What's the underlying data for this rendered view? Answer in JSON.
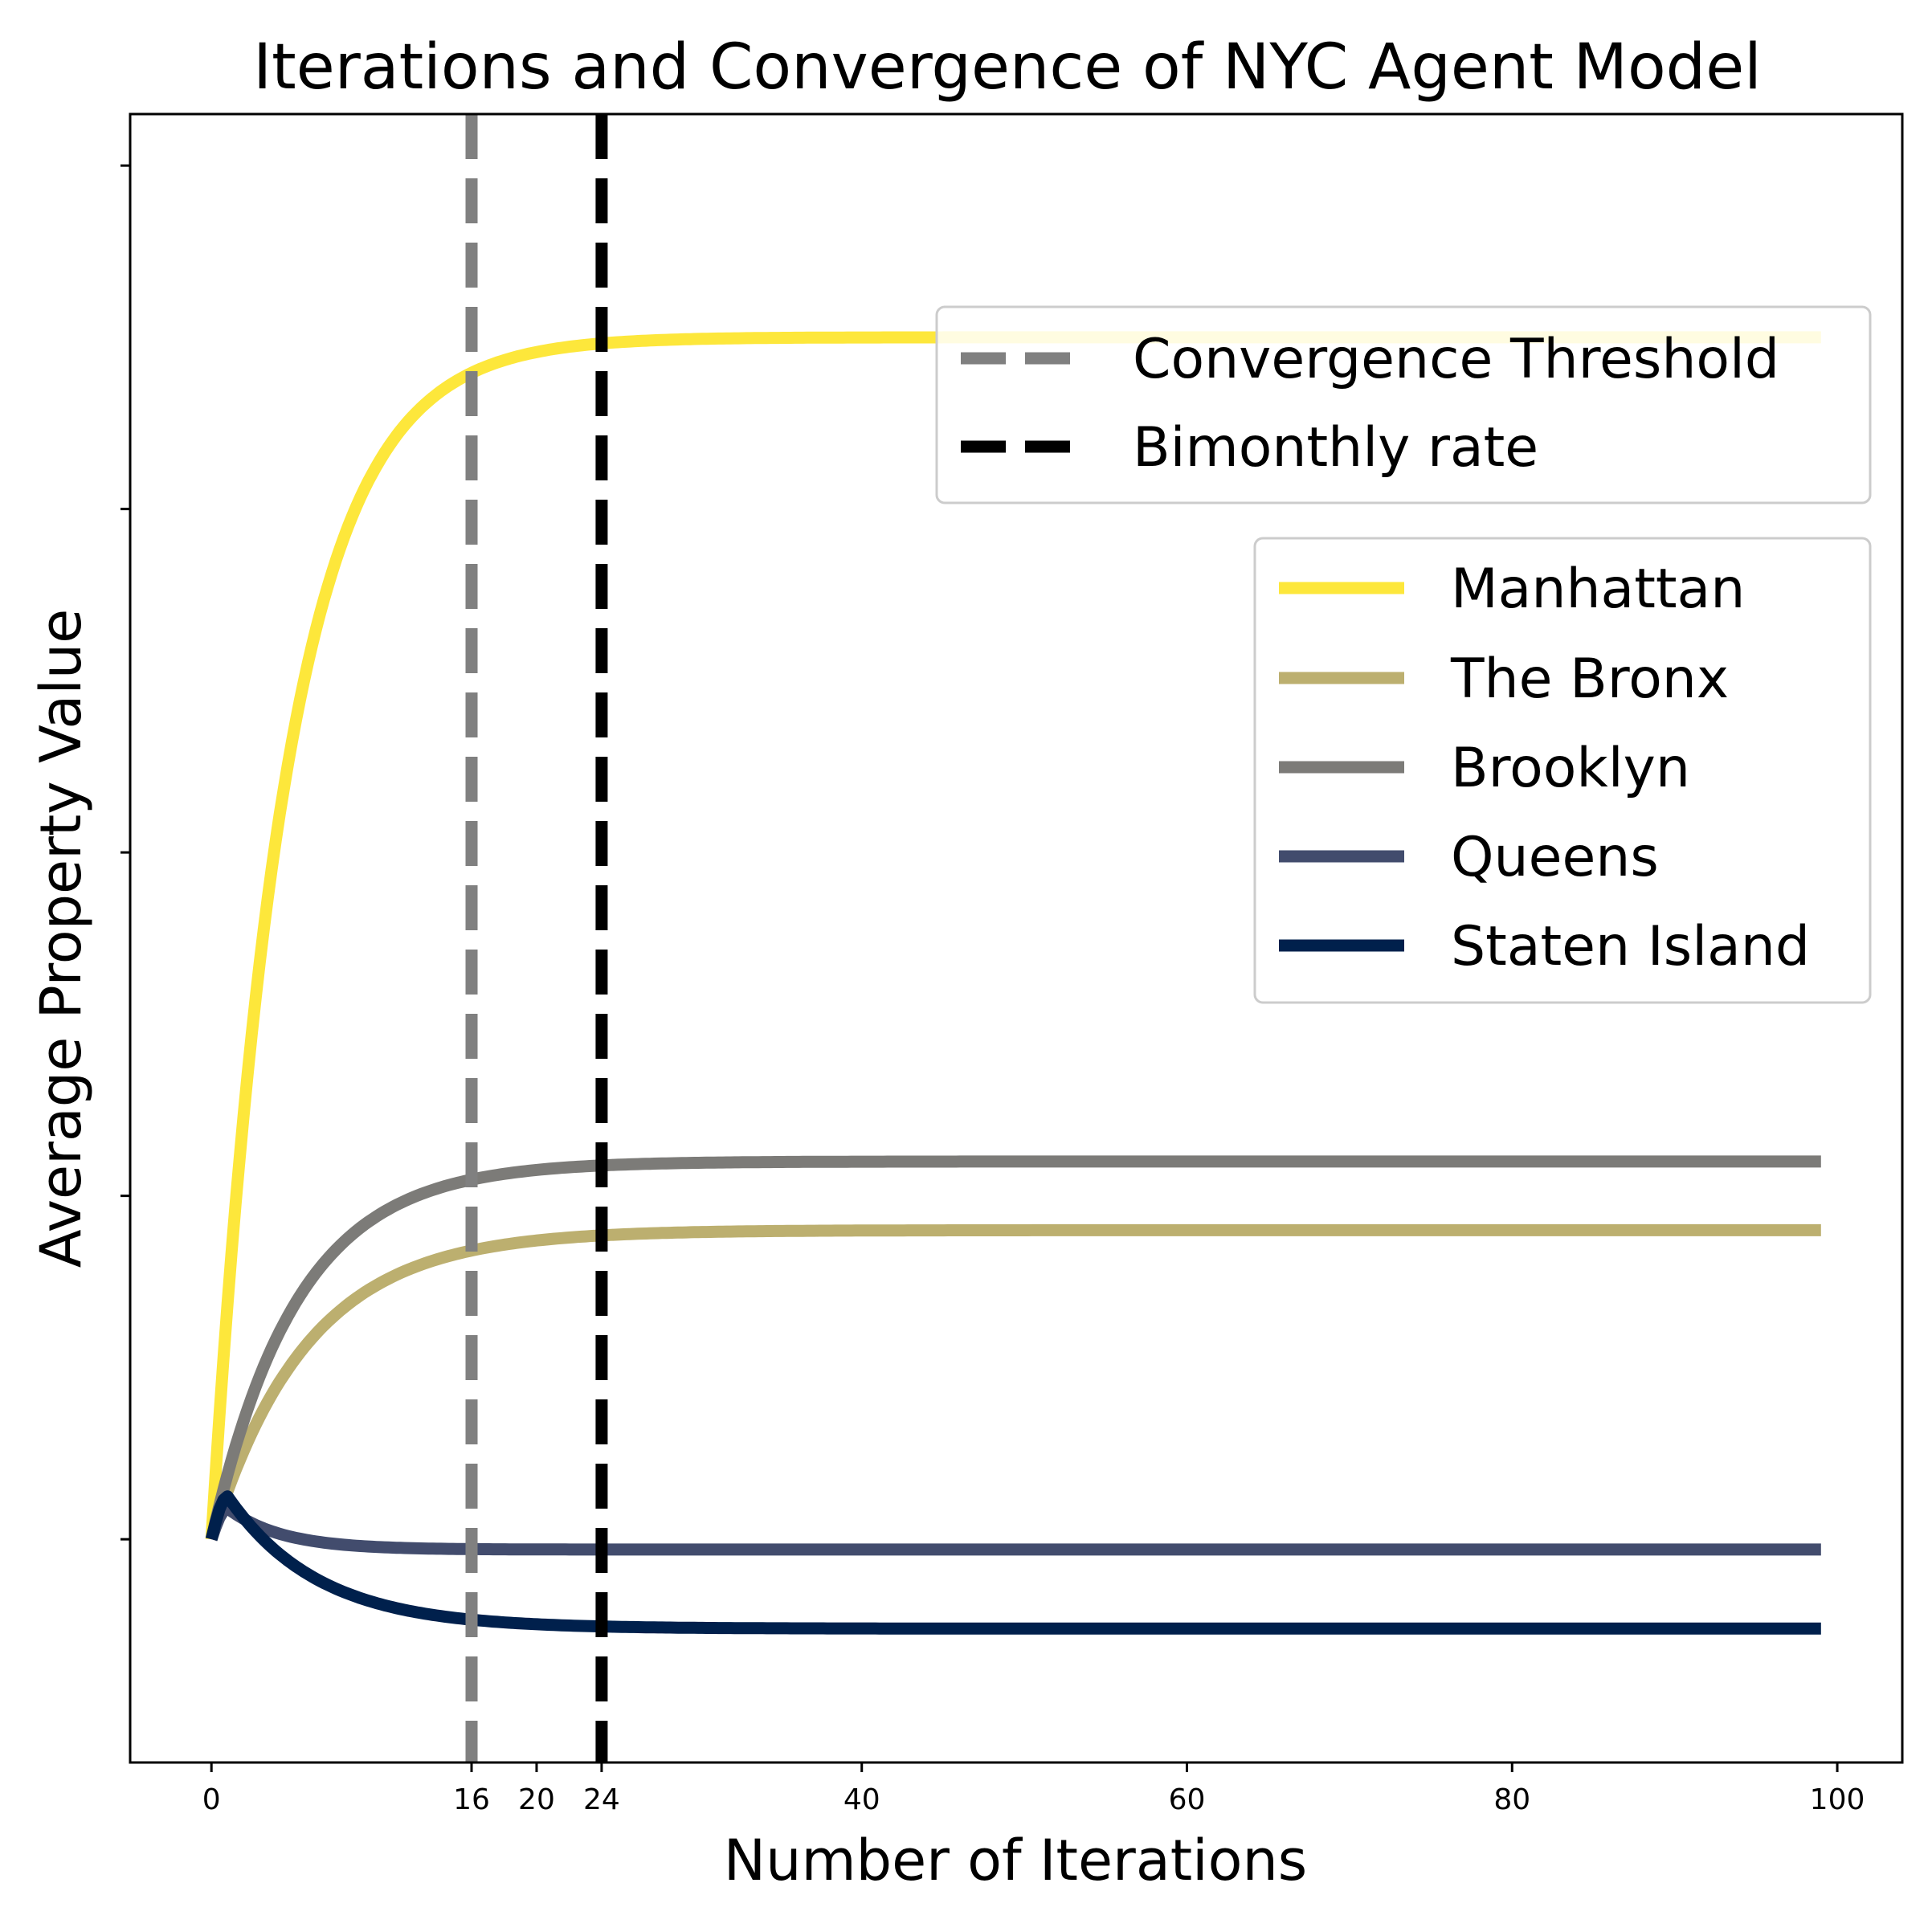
{
  "chart_data": {
    "type": "line",
    "title": "Iterations and Convergence of NYC Agent Model",
    "xlabel": "Number of Iterations",
    "ylabel": "Average Property Value",
    "xlim": [
      -5,
      104
    ],
    "ylim": [
      -1.3,
      8.3
    ],
    "x_ticks": [
      0,
      16,
      20,
      24,
      40,
      60,
      80,
      100
    ],
    "y_tick_values": [
      0,
      2,
      4,
      6,
      8
    ],
    "y_tick_labels_shown": false,
    "grid": false,
    "series": [
      {
        "name": "Manhattan",
        "color": "#fde73b",
        "start": 0,
        "plateau": 7.0,
        "rate": 0.22
      },
      {
        "name": "The Bronx",
        "color": "#bcaf6f",
        "start": 0,
        "plateau": 1.8,
        "rate": 0.17
      },
      {
        "name": "Brooklyn",
        "color": "#7c7b78",
        "start": 0,
        "plateau": 2.2,
        "rate": 0.19
      },
      {
        "name": "Queens",
        "color": "#424c6d",
        "start": 0,
        "plateau": -0.06,
        "rate": 0.3,
        "peak_x": 1,
        "peak_y": 0.18
      },
      {
        "name": "Staten Island",
        "color": "#00204c",
        "start": 0,
        "plateau": -0.52,
        "rate": 0.18,
        "peak_x": 1,
        "peak_y": 0.25
      }
    ],
    "reference_lines": [
      {
        "name": "Convergence Threshold",
        "x": 16,
        "color": "#808080",
        "style": "dashed"
      },
      {
        "name": "Bimonthly rate",
        "x": 24,
        "color": "#000000",
        "style": "dashed"
      }
    ],
    "legends": [
      {
        "placement": "upper-right",
        "entries": [
          "Convergence Threshold",
          "Bimonthly rate"
        ]
      },
      {
        "placement": "right",
        "entries": [
          "Manhattan",
          "The Bronx",
          "Brooklyn",
          "Queens",
          "Staten Island"
        ]
      }
    ]
  }
}
